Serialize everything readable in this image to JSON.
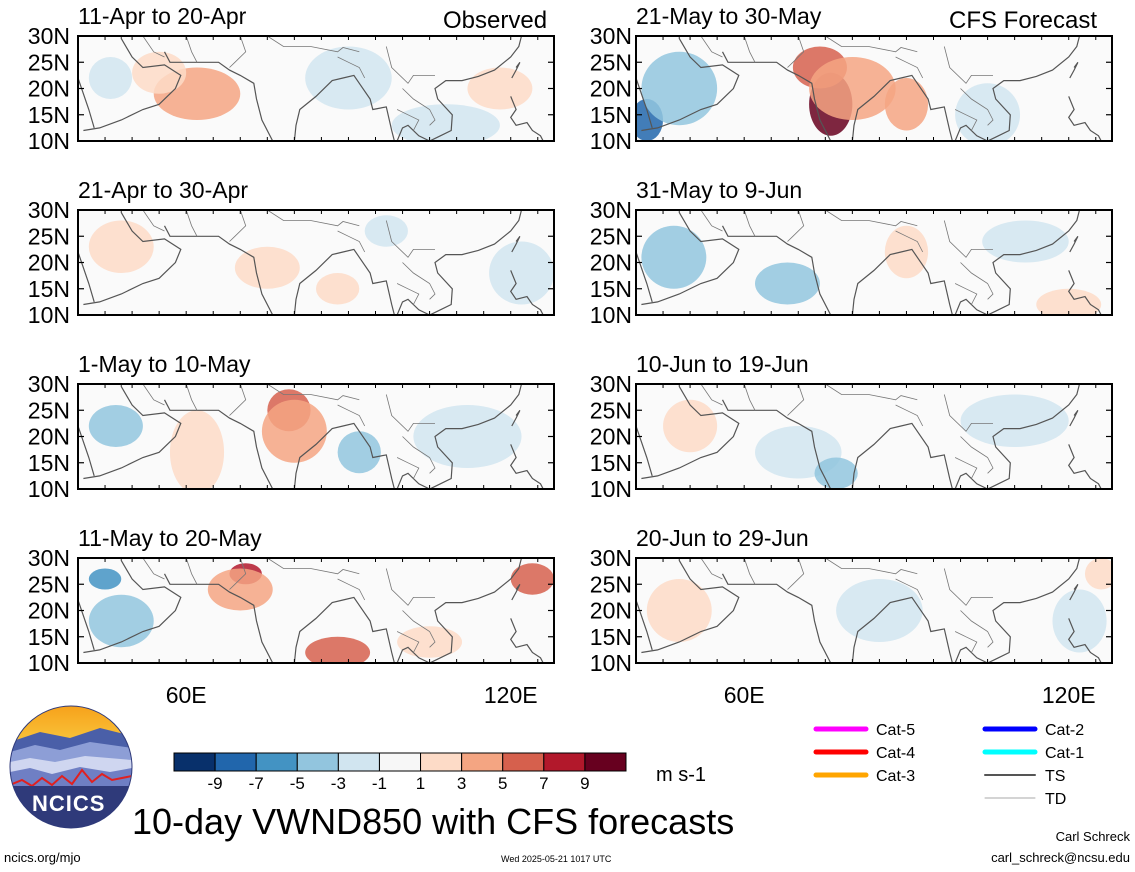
{
  "figure": {
    "title": "10-day VWND850 with CFS forecasts",
    "observed_label": "Observed",
    "forecast_label": "CFS Forecast",
    "author": "Carl Schreck",
    "email": "carl_schreck@ncsu.edu",
    "url": "ncics.org/mjo",
    "timestamp": "Wed 2025-05-21 1017 UTC",
    "logo_text": "NCICS"
  },
  "chart_data": {
    "type": "heatmap",
    "variable": "VWND850",
    "units": "m s-1",
    "lat_ticks": [
      "30N",
      "25N",
      "20N",
      "15N",
      "10N"
    ],
    "lon_ticks": [
      "60E",
      "120E"
    ],
    "lat_range": [
      10,
      30
    ],
    "lon_range": [
      40,
      128
    ],
    "colorbar": {
      "levels": [
        -9,
        -7,
        -5,
        -3,
        -1,
        1,
        3,
        5,
        7,
        9
      ],
      "tick_labels": [
        "-9",
        "-7",
        "-5",
        "-3",
        "-1",
        "1",
        "3",
        "5",
        "7",
        "9"
      ],
      "colors": [
        "#08306b",
        "#2166ac",
        "#4393c3",
        "#92c5de",
        "#d1e5f0",
        "#f7f7f7",
        "#fddbc7",
        "#f4a582",
        "#d6604d",
        "#b2182b",
        "#67001f"
      ]
    },
    "panels": [
      {
        "title": "11-Apr to 20-Apr",
        "column": "observed"
      },
      {
        "title": "21-Apr to 30-Apr",
        "column": "observed"
      },
      {
        "title": "1-May to 10-May",
        "column": "observed"
      },
      {
        "title": "11-May to 20-May",
        "column": "observed"
      },
      {
        "title": "21-May to 30-May",
        "column": "forecast"
      },
      {
        "title": "31-May to 9-Jun",
        "column": "forecast"
      },
      {
        "title": "10-Jun to 19-Jun",
        "column": "forecast"
      },
      {
        "title": "20-Jun to 29-Jun",
        "column": "forecast"
      }
    ]
  },
  "legend": {
    "tracks": [
      {
        "label": "Cat-5",
        "color": "#ff00ff"
      },
      {
        "label": "Cat-4",
        "color": "#ff0000"
      },
      {
        "label": "Cat-3",
        "color": "#ffa500"
      },
      {
        "label": "Cat-2",
        "color": "#0000ff"
      },
      {
        "label": "Cat-1",
        "color": "#00ffff"
      },
      {
        "label": "TS",
        "color": "#555555"
      },
      {
        "label": "TD",
        "color": "#aaaaaa"
      }
    ]
  }
}
